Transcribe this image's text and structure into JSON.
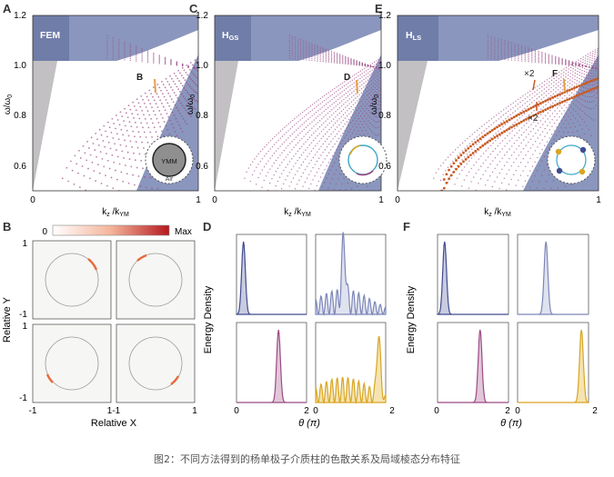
{
  "caption": "图2：不同方法得到的杨单极子介质柱的色散关系及局域棱态分布特征",
  "panels_top": [
    {
      "letter": "A",
      "tag": "FEM",
      "sub": "",
      "marker": "B"
    },
    {
      "letter": "C",
      "tag": "H",
      "sub": "GS",
      "marker": "D"
    },
    {
      "letter": "E",
      "tag": "H",
      "sub": "LS",
      "marker": "F"
    }
  ],
  "axes_top": {
    "ylabel_main": "ω/ω",
    "ylabel_sub": "0",
    "xlabel_main": "k",
    "xlabel_sub1": "z",
    "xlabel_mid": " /k",
    "xlabel_sub2": "YM",
    "yticks": [
      "0.6",
      "0.8",
      "1.0",
      "1.2"
    ],
    "xticks": [
      "0",
      "1"
    ]
  },
  "inset_labels": {
    "ymm": "YMM",
    "air": "Air"
  },
  "annotation_x2": [
    "×2",
    "×2"
  ],
  "panel_B": {
    "letter": "B",
    "colorbar_min": "0",
    "colorbar_max": "Max",
    "ylabel": "Relative Y",
    "xlabel": "Relative X",
    "yticks": [
      "1",
      "-1",
      "1",
      "-1"
    ],
    "xticks": [
      "-1",
      "1-1",
      "1"
    ]
  },
  "panel_D": {
    "letter": "D",
    "ylabel": "Energy Density",
    "xlabel": "θ (π)",
    "xticks": [
      "0",
      "2",
      "0",
      "2"
    ]
  },
  "panel_F": {
    "letter": "F",
    "ylabel": "Energy Density",
    "xlabel": "θ (π)",
    "xticks": [
      "0",
      "2",
      "0",
      "2"
    ]
  },
  "chart_data": [
    {
      "type": "line",
      "panel": "A",
      "title": "FEM",
      "xlabel": "kz/kYM",
      "ylabel": "ω/ω0",
      "xlim": [
        0,
        1
      ],
      "ylim": [
        0.5,
        1.2
      ]
    },
    {
      "type": "line",
      "panel": "C",
      "title": "HGS",
      "xlabel": "kz/kYM",
      "ylabel": "ω/ω0",
      "xlim": [
        0,
        1
      ],
      "ylim": [
        0.5,
        1.2
      ]
    },
    {
      "type": "line",
      "panel": "E",
      "title": "HLS",
      "xlabel": "kz/kYM",
      "ylabel": "ω/ω0",
      "xlim": [
        0,
        1
      ],
      "ylim": [
        0.5,
        1.2
      ],
      "annotations": [
        "×2",
        "×2"
      ]
    },
    {
      "type": "line",
      "panel": "D",
      "xlabel": "θ (π)",
      "ylabel": "Energy Density",
      "xlim": [
        0,
        2
      ],
      "subplots": [
        {
          "peaks": [
            0.2
          ]
        },
        {
          "peaks": [
            0.8
          ]
        },
        {
          "peaks": [
            1.2
          ]
        },
        {
          "peaks": [
            1.8
          ]
        }
      ]
    },
    {
      "type": "line",
      "panel": "F",
      "xlabel": "θ (π)",
      "ylabel": "Energy Density",
      "xlim": [
        0,
        2
      ],
      "subplots": [
        {
          "peaks": [
            0.2
          ]
        },
        {
          "peaks": [
            0.8
          ]
        },
        {
          "peaks": [
            1.2
          ]
        },
        {
          "peaks": [
            1.8
          ]
        }
      ]
    }
  ],
  "colors": {
    "blue": "#8a96bd",
    "gray": "#c2c0c2",
    "purple": "#9b4b85",
    "orange": "#c85a1e",
    "gold": "#d9a521",
    "navy": "#404c8f"
  }
}
